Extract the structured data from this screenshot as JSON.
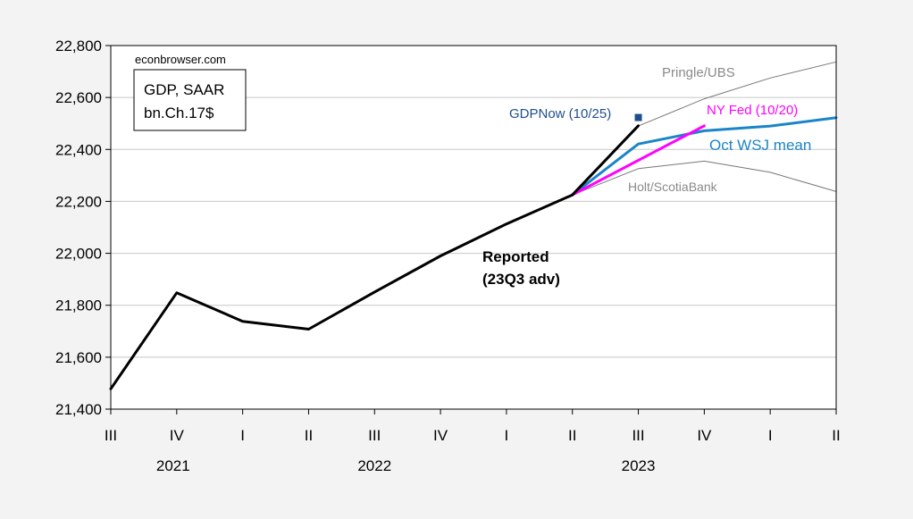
{
  "site_label": "econbrowser.com",
  "box_label": {
    "line1": "GDP, SAAR",
    "line2": "bn.Ch.17$"
  },
  "chart_data": {
    "type": "line",
    "title": "",
    "xlabel": "",
    "ylabel": "",
    "ylim": [
      21400,
      22800
    ],
    "yticks": [
      21400,
      21600,
      21800,
      22000,
      22200,
      22400,
      22600,
      22800
    ],
    "ytick_labels": [
      "21,400",
      "21,600",
      "21,800",
      "22,000",
      "22,200",
      "22,400",
      "22,600",
      "22,800"
    ],
    "grid": true,
    "categories": [
      "2021Q3",
      "2021Q4",
      "2022Q1",
      "2022Q2",
      "2022Q3",
      "2022Q4",
      "2023Q1",
      "2023Q2",
      "2023Q3",
      "2023Q4",
      "2024Q1",
      "2024Q2"
    ],
    "quarter_labels": [
      "III",
      "IV",
      "I",
      "II",
      "III",
      "IV",
      "I",
      "II",
      "III",
      "IV",
      "I",
      "II"
    ],
    "year_labels": [
      {
        "text": "2021",
        "at": 1
      },
      {
        "text": "2022",
        "at": 4
      },
      {
        "text": "2023",
        "at": 8
      }
    ],
    "series": [
      {
        "name": "Reported (23Q3 adv)",
        "label_lines": [
          "Reported",
          "(23Q3 adv)"
        ],
        "color": "#000000",
        "width": 3,
        "points": [
          [
            0,
            21478
          ],
          [
            1,
            21848
          ],
          [
            2,
            21738
          ],
          [
            3,
            21708
          ],
          [
            4,
            21851
          ],
          [
            5,
            21990
          ],
          [
            6,
            22113
          ],
          [
            7,
            22225
          ],
          [
            8,
            22491
          ]
        ]
      },
      {
        "name": "Oct WSJ mean",
        "color": "#1a85c8",
        "width": 3,
        "points": [
          [
            7,
            22225
          ],
          [
            8,
            22421
          ],
          [
            9,
            22472
          ],
          [
            10,
            22490
          ],
          [
            11,
            22522
          ]
        ]
      },
      {
        "name": "NY Fed (10/20)",
        "color": "#ff00ff",
        "width": 3,
        "points": [
          [
            7,
            22225
          ],
          [
            9,
            22491
          ]
        ]
      },
      {
        "name": "Pringle/UBS",
        "color": "#777777",
        "width": 1,
        "points": [
          [
            7,
            22225
          ],
          [
            8,
            22490
          ],
          [
            9,
            22595
          ],
          [
            10,
            22675
          ],
          [
            11,
            22737
          ]
        ]
      },
      {
        "name": "Holt/ScotiaBank",
        "color": "#777777",
        "width": 1,
        "points": [
          [
            7,
            22225
          ],
          [
            8,
            22326
          ],
          [
            9,
            22355
          ],
          [
            10,
            22312
          ],
          [
            11,
            22238
          ]
        ]
      }
    ],
    "point_marks": [
      {
        "name": "GDPNow (10/25)",
        "color": "#1f4e8c",
        "x": 8,
        "y": 22523
      }
    ],
    "annotations": [
      {
        "text": "Pringle/UBS",
        "color": "#8a8a8a",
        "size": 15
      },
      {
        "text": "NY Fed (10/20)",
        "color": "#ff00ff",
        "size": 15
      },
      {
        "text": "GDPNow (10/25)",
        "color": "#1f4e8c",
        "size": 15
      },
      {
        "text": "Oct WSJ mean",
        "color": "#1a85c8",
        "size": 17
      },
      {
        "text": "Holt/ScotiaBank",
        "color": "#8a8a8a",
        "size": 14
      },
      {
        "text": "Reported",
        "color": "#000000",
        "size": 17,
        "bold": true
      },
      {
        "text": "(23Q3 adv)",
        "color": "#000000",
        "size": 17,
        "bold": true
      }
    ]
  }
}
